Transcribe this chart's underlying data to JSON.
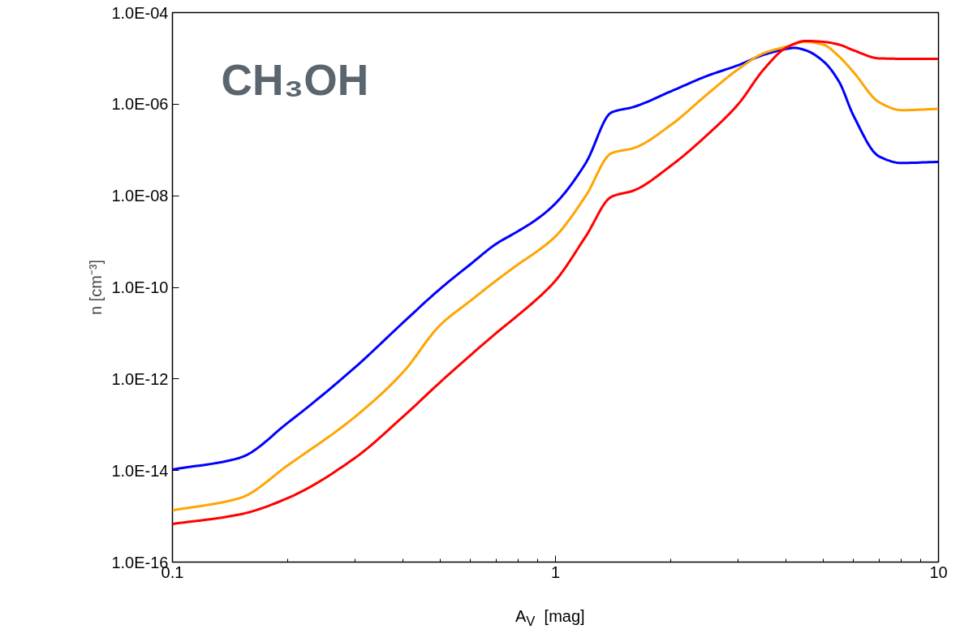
{
  "chart_data": {
    "type": "line",
    "xlabel": "A$_{V}$  [mag]",
    "ylabel": "n [cm⁻³]",
    "annotations": [
      "CH₃OH"
    ],
    "log": "xy",
    "grid": false,
    "line_style": "solid",
    "marker": "none",
    "xlim": [
      0.1,
      10
    ],
    "xticks": [
      0.1,
      1,
      10
    ],
    "ylim": [
      1e-16,
      0.0001
    ],
    "yticks": [
      {
        "value": 1e-16,
        "label": "1.0E-16"
      },
      {
        "value": 1e-14,
        "label": "1.0E-14"
      },
      {
        "value": 1e-12,
        "label": "1.0E-12"
      },
      {
        "value": 1e-10,
        "label": "1.0E-10"
      },
      {
        "value": 1e-08,
        "label": "1.0E-08"
      },
      {
        "value": 1e-06,
        "label": "1.0E-06"
      },
      {
        "value": 0.0001,
        "label": "1.0E-04"
      }
    ],
    "series": [
      {
        "color": "#0000ff",
        "x": [
          0.1,
          0.15,
          0.2,
          0.3,
          0.4,
          0.5,
          0.6,
          0.7,
          0.8,
          0.9,
          1,
          1.2,
          1.4,
          1.6,
          2,
          2.5,
          3,
          3.5,
          4,
          4.2,
          4.5,
          5,
          5.5,
          6,
          7,
          8,
          10
        ],
        "values": [
          1.05e-14,
          1.9e-14,
          1.1e-13,
          1.8e-12,
          1.7e-11,
          9.3e-11,
          3.2e-10,
          8.9e-10,
          1.7e-09,
          3.2e-09,
          6.8e-09,
          5.2e-08,
          6.6e-07,
          8.7e-07,
          1.9e-06,
          4.2e-06,
          7.1e-06,
          1.2e-05,
          1.6e-05,
          1.7e-05,
          1.5e-05,
          8.7e-06,
          3.1e-06,
          5.6e-07,
          7.2e-08,
          5.2e-08,
          5.5e-08
        ]
      },
      {
        "color": "#ffa500",
        "x": [
          0.1,
          0.15,
          0.2,
          0.3,
          0.4,
          0.5,
          0.6,
          0.7,
          0.8,
          0.9,
          1,
          1.2,
          1.4,
          1.6,
          2,
          2.5,
          3,
          3.5,
          4,
          4.5,
          5,
          5.5,
          6,
          7,
          8,
          10
        ],
        "values": [
          1.35e-15,
          2.5e-15,
          1.3e-14,
          1.5e-13,
          1.4e-12,
          1.5e-11,
          5.1e-11,
          1.4e-10,
          3.2e-10,
          6.3e-10,
          1.3e-09,
          1e-08,
          8.5e-08,
          1.1e-07,
          3.5e-07,
          1.7e-06,
          5.8e-06,
          1.3e-05,
          1.8e-05,
          2.3e-05,
          2e-05,
          1.1e-05,
          5e-06,
          1.1e-06,
          7.4e-07,
          7.9e-07
        ]
      },
      {
        "color": "#ff0000",
        "x": [
          0.1,
          0.15,
          0.2,
          0.3,
          0.4,
          0.5,
          0.6,
          0.7,
          0.8,
          0.9,
          1,
          1.2,
          1.4,
          1.6,
          2,
          2.5,
          3,
          3.5,
          4,
          4.5,
          5,
          5.5,
          6,
          7,
          8,
          10
        ],
        "values": [
          6.8e-16,
          1.1e-15,
          2.5e-15,
          1.9e-14,
          1.5e-13,
          8.5e-13,
          3.3e-12,
          1e-11,
          2.5e-11,
          5.8e-11,
          1.4e-10,
          1.3e-09,
          9.5e-09,
          1.3e-08,
          4.5e-08,
          2.2e-07,
          1e-06,
          5.8e-06,
          1.7e-05,
          2.4e-05,
          2.3e-05,
          2e-05,
          1.5e-05,
          1e-05,
          9.8e-06,
          9.8e-06
        ]
      }
    ]
  }
}
